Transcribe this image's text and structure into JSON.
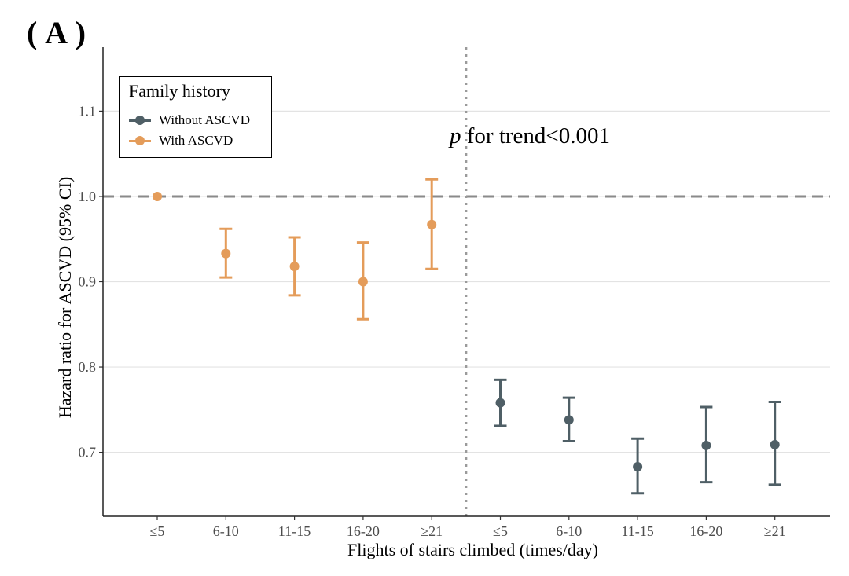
{
  "panel_label": "( A )",
  "colors": {
    "without": "#4f5f66",
    "with": "#e49c5a"
  },
  "legend": {
    "title": "Family history",
    "items": [
      {
        "label": "Without ASCVD",
        "color": "#4f5f66"
      },
      {
        "label": "With ASCVD",
        "color": "#e49c5a"
      }
    ]
  },
  "chart_data": {
    "type": "scatter",
    "xlabel": "Flights of stairs climbed (times/day)",
    "ylabel": "Hazard ratio for ASCVD (95% CI)",
    "annotation": {
      "italic": "p",
      "text": " for trend<0.001"
    },
    "ylim": [
      0.625,
      1.175
    ],
    "yticks": [
      0.7,
      0.8,
      0.9,
      1.0,
      1.1
    ],
    "ytick_labels": [
      "0.7",
      "0.8",
      "0.9",
      "1.0",
      "1.1"
    ],
    "categories": [
      "≤5",
      "6-10",
      "11-15",
      "16-20",
      "≥21",
      "≤5",
      "6-10",
      "11-15",
      "16-20",
      "≥21"
    ],
    "reference_line": 1.0,
    "grid": "horizontal",
    "legend_position": "top-left",
    "series": [
      {
        "name": "With ASCVD",
        "color": "#e49c5a",
        "points": [
          {
            "x": 0,
            "hr": 1.0,
            "lo": 1.0,
            "hi": 1.0
          },
          {
            "x": 1,
            "hr": 0.933,
            "lo": 0.905,
            "hi": 0.962
          },
          {
            "x": 2,
            "hr": 0.918,
            "lo": 0.884,
            "hi": 0.952
          },
          {
            "x": 3,
            "hr": 0.9,
            "lo": 0.856,
            "hi": 0.946
          },
          {
            "x": 4,
            "hr": 0.967,
            "lo": 0.915,
            "hi": 1.02
          }
        ]
      },
      {
        "name": "Without ASCVD",
        "color": "#4f5f66",
        "points": [
          {
            "x": 5,
            "hr": 0.758,
            "lo": 0.731,
            "hi": 0.785
          },
          {
            "x": 6,
            "hr": 0.738,
            "lo": 0.713,
            "hi": 0.764
          },
          {
            "x": 7,
            "hr": 0.683,
            "lo": 0.652,
            "hi": 0.716
          },
          {
            "x": 8,
            "hr": 0.708,
            "lo": 0.665,
            "hi": 0.753
          },
          {
            "x": 9,
            "hr": 0.709,
            "lo": 0.662,
            "hi": 0.759
          }
        ]
      }
    ]
  }
}
